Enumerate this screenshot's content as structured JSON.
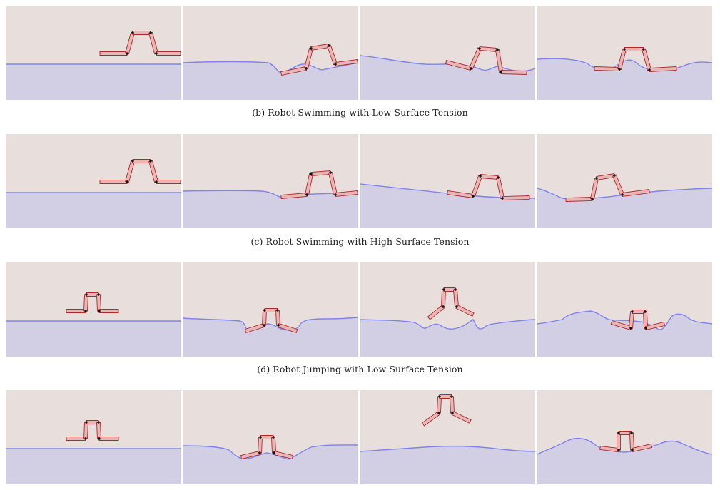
{
  "figure": {
    "colors": {
      "air": "#e8dfdd",
      "water": "#d2cfe4",
      "surface_line": "#7f84ee",
      "robot_fill": "#e7b7b8",
      "robot_stroke": "#b02a2a",
      "joint": "#111111"
    },
    "rows": [
      {
        "caption": "(b)  Robot Swimming with Low Surface Tension"
      },
      {
        "caption": "(c)  Robot Swimming with High Surface Tension"
      },
      {
        "caption": "(d)  Robot Jumping with Low Surface Tension"
      },
      {
        "caption": ""
      }
    ]
  }
}
